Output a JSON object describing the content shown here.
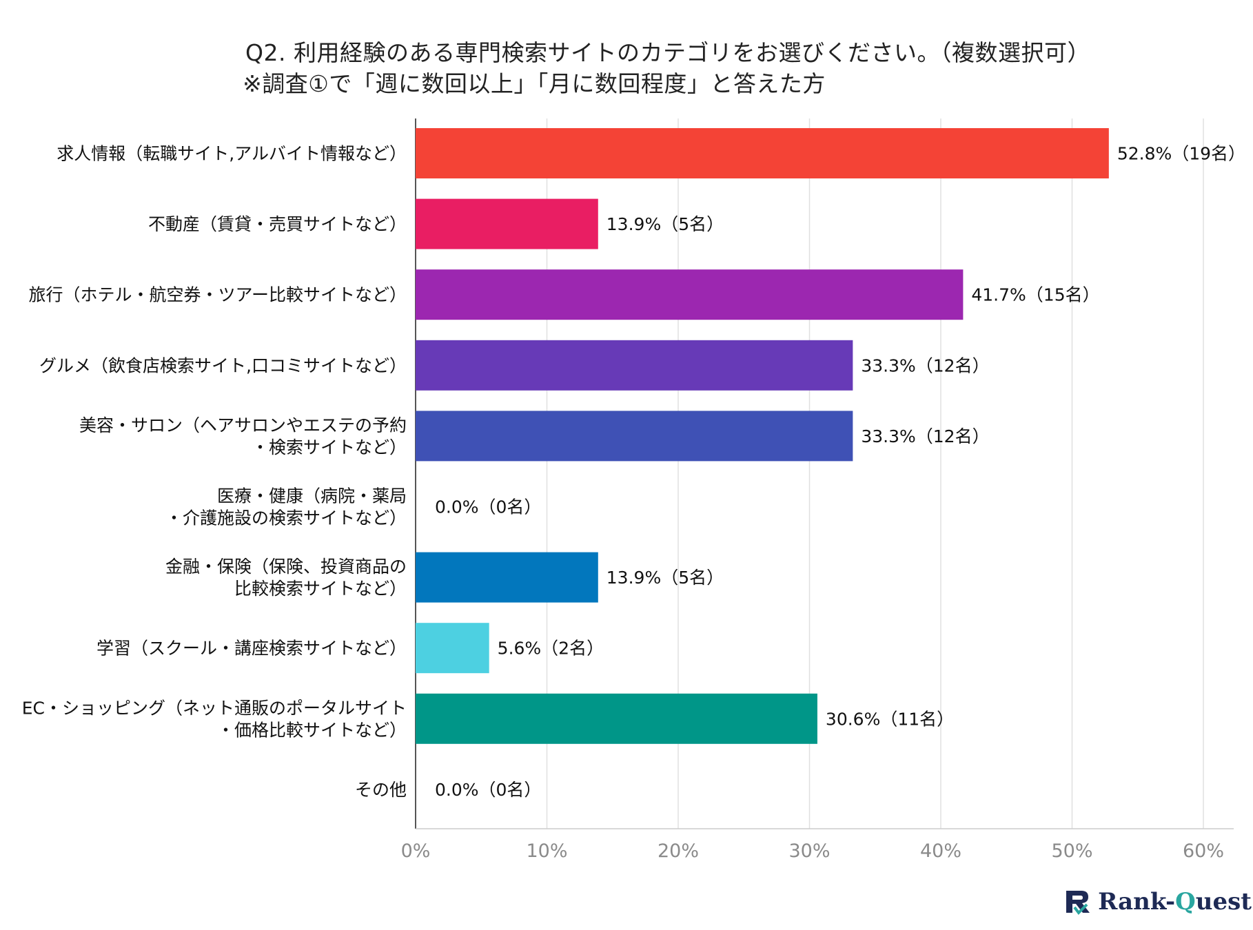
{
  "title": {
    "line1": "Q2. 利用経験のある専門検索サイトのカテゴリをお選びください。（複数選択可）",
    "line2": "※調査①で「週に数回以上」「月に数回程度」と答えた方"
  },
  "chart_data": {
    "type": "bar",
    "orientation": "horizontal",
    "xlim": [
      0,
      60
    ],
    "x_ticks": [
      "0%",
      "10%",
      "20%",
      "30%",
      "40%",
      "50%",
      "60%"
    ],
    "grid": true,
    "categories": [
      [
        "求人情報（転職サイト,アルバイト情報など）"
      ],
      [
        "不動産（賃貸・売買サイトなど）"
      ],
      [
        "旅行（ホテル・航空券・ツアー比較サイトなど）"
      ],
      [
        "グルメ（飲食店検索サイト,口コミサイトなど）"
      ],
      [
        "美容・サロン（ヘアサロンやエステの予約",
        "・検索サイトなど）"
      ],
      [
        "医療・健康（病院・薬局",
        "・介護施設の検索サイトなど）"
      ],
      [
        "金融・保険（保険、投資商品の",
        "比較検索サイトなど）"
      ],
      [
        "学習（スクール・講座検索サイトなど）"
      ],
      [
        "EC・ショッピング（ネット通販のポータルサイト",
        "・価格比較サイトなど）"
      ],
      [
        "その他"
      ]
    ],
    "values": [
      52.8,
      13.9,
      41.7,
      33.3,
      33.3,
      0.0,
      13.9,
      5.6,
      30.6,
      0.0
    ],
    "data_labels": [
      "52.8%（19名）",
      "13.9%（5名）",
      "41.7%（15名）",
      "33.3%（12名）",
      "33.3%（12名）",
      "0.0%（0名）",
      "13.9%（5名）",
      "5.6%（2名）",
      "30.6%（11名）",
      "0.0%（0名）"
    ],
    "colors": [
      "#f44336",
      "#e91e63",
      "#9c27b0",
      "#673ab7",
      "#3f51b5",
      "#2196f3",
      "#0277bd",
      "#4dd0e1",
      "#009688",
      "#4caf50"
    ]
  },
  "logo": {
    "text_main": "Rank-",
    "text_accent": "Q",
    "text_rest": "uest"
  }
}
